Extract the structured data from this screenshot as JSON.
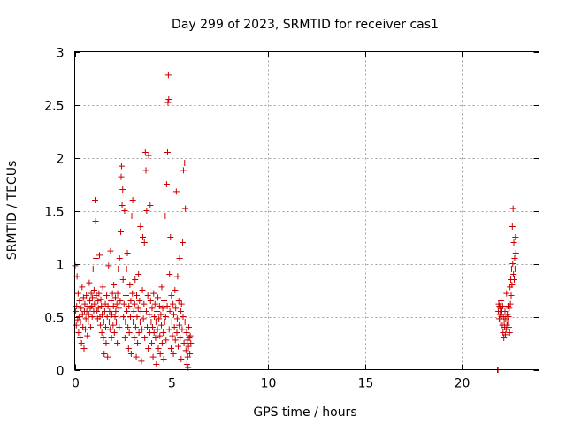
{
  "chart_data": {
    "type": "scatter",
    "title": "Day 299 of 2023, SRMTID for receiver cas1",
    "xlabel": "GPS time / hours",
    "ylabel": "SRMTID / TECUs",
    "xlim": [
      0,
      24
    ],
    "ylim": [
      0,
      3
    ],
    "x_ticks": [
      0,
      5,
      10,
      15,
      20
    ],
    "x_tick_labels": [
      "0",
      "5",
      "10",
      "15",
      "20"
    ],
    "y_ticks": [
      0,
      0.5,
      1,
      1.5,
      2,
      2.5,
      3
    ],
    "y_tick_labels": [
      "0",
      "0.5",
      "1",
      "1.5",
      "2",
      "2.5",
      "3"
    ],
    "grid": true,
    "marker": "+",
    "color": "#cc0000",
    "series": [
      {
        "name": "SRMTID",
        "points": [
          [
            0.02,
            0.98
          ],
          [
            0.05,
            0.55
          ],
          [
            0.08,
            0.42
          ],
          [
            0.1,
            0.6
          ],
          [
            0.12,
            0.88
          ],
          [
            0.15,
            0.47
          ],
          [
            0.18,
            0.72
          ],
          [
            0.2,
            0.35
          ],
          [
            0.22,
            0.5
          ],
          [
            0.25,
            0.65
          ],
          [
            0.28,
            0.3
          ],
          [
            0.3,
            0.45
          ],
          [
            0.33,
            0.58
          ],
          [
            0.35,
            0.25
          ],
          [
            0.38,
            0.78
          ],
          [
            0.4,
            0.52
          ],
          [
            0.42,
            0.4
          ],
          [
            0.45,
            0.68
          ],
          [
            0.48,
            0.2
          ],
          [
            0.5,
            0.55
          ],
          [
            0.52,
            0.62
          ],
          [
            0.55,
            0.38
          ],
          [
            0.58,
            0.48
          ],
          [
            0.6,
            0.7
          ],
          [
            0.62,
            0.55
          ],
          [
            0.65,
            0.32
          ],
          [
            0.68,
            0.6
          ],
          [
            0.7,
            0.45
          ],
          [
            0.72,
            0.52
          ],
          [
            0.75,
            0.82
          ],
          [
            0.78,
            0.65
          ],
          [
            0.8,
            0.58
          ],
          [
            0.82,
            0.4
          ],
          [
            0.85,
            0.72
          ],
          [
            0.88,
            0.6
          ],
          [
            0.9,
            0.5
          ],
          [
            0.92,
            0.68
          ],
          [
            0.95,
            0.95
          ],
          [
            0.98,
            0.55
          ],
          [
            1.0,
            0.75
          ],
          [
            1.02,
            0.62
          ],
          [
            1.05,
            1.6
          ],
          [
            1.08,
            1.4
          ],
          [
            1.1,
            1.05
          ],
          [
            1.12,
            0.7
          ],
          [
            1.15,
            0.55
          ],
          [
            1.18,
            0.48
          ],
          [
            1.2,
            0.65
          ],
          [
            1.22,
            0.58
          ],
          [
            1.25,
            0.72
          ],
          [
            1.28,
            1.08
          ],
          [
            1.3,
            0.5
          ],
          [
            1.33,
            0.42
          ],
          [
            1.35,
            0.66
          ],
          [
            1.38,
            0.6
          ],
          [
            1.4,
            0.35
          ],
          [
            1.42,
            0.52
          ],
          [
            1.45,
            0.78
          ],
          [
            1.48,
            0.3
          ],
          [
            1.5,
            0.45
          ],
          [
            1.52,
            0.15
          ],
          [
            1.55,
            0.55
          ],
          [
            1.58,
            0.62
          ],
          [
            1.6,
            0.4
          ],
          [
            1.62,
            0.25
          ],
          [
            1.65,
            0.7
          ],
          [
            1.68,
            0.5
          ],
          [
            1.7,
            0.12
          ],
          [
            1.72,
            0.6
          ],
          [
            1.75,
            0.98
          ],
          [
            1.78,
            0.45
          ],
          [
            1.8,
            0.55
          ],
          [
            1.82,
            0.38
          ],
          [
            1.85,
            1.12
          ],
          [
            1.88,
            0.65
          ],
          [
            1.9,
            0.3
          ],
          [
            1.92,
            0.52
          ],
          [
            1.95,
            0.72
          ],
          [
            1.98,
            0.42
          ],
          [
            2.0,
            0.6
          ],
          [
            2.02,
            0.8
          ],
          [
            2.05,
            0.35
          ],
          [
            2.08,
            0.5
          ],
          [
            2.1,
            0.68
          ],
          [
            2.12,
            0.55
          ],
          [
            2.15,
            0.45
          ],
          [
            2.18,
            0.62
          ],
          [
            2.2,
            0.25
          ],
          [
            2.22,
            0.72
          ],
          [
            2.25,
            0.95
          ],
          [
            2.28,
            0.58
          ],
          [
            2.3,
            0.4
          ],
          [
            2.32,
            1.05
          ],
          [
            2.35,
            0.65
          ],
          [
            2.38,
            1.3
          ],
          [
            2.4,
            1.82
          ],
          [
            2.42,
            1.92
          ],
          [
            2.45,
            1.55
          ],
          [
            2.48,
            1.7
          ],
          [
            2.5,
            0.85
          ],
          [
            2.52,
            0.5
          ],
          [
            2.55,
            0.62
          ],
          [
            2.58,
            1.5
          ],
          [
            2.6,
            0.3
          ],
          [
            2.62,
            0.45
          ],
          [
            2.65,
            0.7
          ],
          [
            2.68,
            0.95
          ],
          [
            2.7,
            0.55
          ],
          [
            2.72,
            1.1
          ],
          [
            2.75,
            0.4
          ],
          [
            2.78,
            0.2
          ],
          [
            2.8,
            0.6
          ],
          [
            2.82,
            0.35
          ],
          [
            2.85,
            0.8
          ],
          [
            2.88,
            0.5
          ],
          [
            2.9,
            0.65
          ],
          [
            2.92,
            0.15
          ],
          [
            2.95,
            1.45
          ],
          [
            2.98,
            0.72
          ],
          [
            3.0,
            1.6
          ],
          [
            3.02,
            0.45
          ],
          [
            3.05,
            0.55
          ],
          [
            3.08,
            0.3
          ],
          [
            3.1,
            0.62
          ],
          [
            3.12,
            0.85
          ],
          [
            3.15,
            0.4
          ],
          [
            3.18,
            0.12
          ],
          [
            3.2,
            0.7
          ],
          [
            3.22,
            0.5
          ],
          [
            3.25,
            0.25
          ],
          [
            3.28,
            0.58
          ],
          [
            3.3,
            0.9
          ],
          [
            3.32,
            0.35
          ],
          [
            3.35,
            0.65
          ],
          [
            3.38,
            0.45
          ],
          [
            3.4,
            1.35
          ],
          [
            3.42,
            0.55
          ],
          [
            3.45,
            0.08
          ],
          [
            3.48,
            0.38
          ],
          [
            3.5,
            0.75
          ],
          [
            3.52,
            1.25
          ],
          [
            3.55,
            0.48
          ],
          [
            3.58,
            0.62
          ],
          [
            3.6,
            1.2
          ],
          [
            3.62,
            0.3
          ],
          [
            3.65,
            2.05
          ],
          [
            3.68,
            1.88
          ],
          [
            3.7,
            0.55
          ],
          [
            3.72,
            1.5
          ],
          [
            3.75,
            0.4
          ],
          [
            3.78,
            0.7
          ],
          [
            3.8,
            0.2
          ],
          [
            3.82,
            2.02
          ],
          [
            3.85,
            0.52
          ],
          [
            3.88,
            0.35
          ],
          [
            3.9,
            1.55
          ],
          [
            3.92,
            0.65
          ],
          [
            3.95,
            0.45
          ],
          [
            3.98,
            0.25
          ],
          [
            4.0,
            0.58
          ],
          [
            4.02,
            0.4
          ],
          [
            4.05,
            0.12
          ],
          [
            4.08,
            0.72
          ],
          [
            4.1,
            0.35
          ],
          [
            4.12,
            0.5
          ],
          [
            4.15,
            0.62
          ],
          [
            4.18,
            0.3
          ],
          [
            4.2,
            0.45
          ],
          [
            4.22,
            0.05
          ],
          [
            4.25,
            0.55
          ],
          [
            4.28,
            0.38
          ],
          [
            4.3,
            0.68
          ],
          [
            4.32,
            0.2
          ],
          [
            4.35,
            0.48
          ],
          [
            4.38,
            0.6
          ],
          [
            4.4,
            0.32
          ],
          [
            4.42,
            0.15
          ],
          [
            4.45,
            0.52
          ],
          [
            4.48,
            0.42
          ],
          [
            4.5,
            0.78
          ],
          [
            4.52,
            0.25
          ],
          [
            4.55,
            0.58
          ],
          [
            4.58,
            0.35
          ],
          [
            4.6,
            0.1
          ],
          [
            4.62,
            0.65
          ],
          [
            4.65,
            0.45
          ],
          [
            4.68,
            1.45
          ],
          [
            4.7,
            0.5
          ],
          [
            4.72,
            0.28
          ],
          [
            4.75,
            1.75
          ],
          [
            4.78,
            0.6
          ],
          [
            4.8,
            2.05
          ],
          [
            4.82,
            2.52
          ],
          [
            4.84,
            2.78
          ],
          [
            4.86,
            2.55
          ],
          [
            4.88,
            0.38
          ],
          [
            4.9,
            0.9
          ],
          [
            4.92,
            0.55
          ],
          [
            4.95,
            1.25
          ],
          [
            4.98,
            0.2
          ],
          [
            5.0,
            0.7
          ],
          [
            5.02,
            0.45
          ],
          [
            5.05,
            0.32
          ],
          [
            5.08,
            0.62
          ],
          [
            5.1,
            0.15
          ],
          [
            5.12,
            0.52
          ],
          [
            5.15,
            0.4
          ],
          [
            5.18,
            0.75
          ],
          [
            5.2,
            0.28
          ],
          [
            5.22,
            0.58
          ],
          [
            5.25,
            1.68
          ],
          [
            5.28,
            0.35
          ],
          [
            5.3,
            0.48
          ],
          [
            5.32,
            0.88
          ],
          [
            5.35,
            0.22
          ],
          [
            5.38,
            0.65
          ],
          [
            5.4,
            0.42
          ],
          [
            5.42,
            1.05
          ],
          [
            5.45,
            0.3
          ],
          [
            5.48,
            0.55
          ],
          [
            5.5,
            0.1
          ],
          [
            5.52,
            0.62
          ],
          [
            5.55,
            0.38
          ],
          [
            5.58,
            1.2
          ],
          [
            5.6,
            0.5
          ],
          [
            5.62,
            1.88
          ],
          [
            5.65,
            0.25
          ],
          [
            5.68,
            1.95
          ],
          [
            5.7,
            0.45
          ],
          [
            5.72,
            1.52
          ],
          [
            5.75,
            0.18
          ],
          [
            5.78,
            0.35
          ],
          [
            5.8,
            0.05
          ],
          [
            5.82,
            0.28
          ],
          [
            5.84,
            0.12
          ],
          [
            5.86,
            0.02
          ],
          [
            5.88,
            0.22
          ],
          [
            5.9,
            0.4
          ],
          [
            5.92,
            0.3
          ],
          [
            5.95,
            0.15
          ],
          [
            5.97,
            0.32
          ],
          [
            6.0,
            0.25
          ],
          [
            21.85,
            0.0
          ],
          [
            21.88,
            0.0
          ],
          [
            21.9,
            0.55
          ],
          [
            21.92,
            0.62
          ],
          [
            21.94,
            0.48
          ],
          [
            21.96,
            0.6
          ],
          [
            21.98,
            0.52
          ],
          [
            22.0,
            0.58
          ],
          [
            22.02,
            0.45
          ],
          [
            22.04,
            0.65
          ],
          [
            22.06,
            0.5
          ],
          [
            22.08,
            0.55
          ],
          [
            22.1,
            0.42
          ],
          [
            22.12,
            0.6
          ],
          [
            22.14,
            0.35
          ],
          [
            22.16,
            0.5
          ],
          [
            22.18,
            0.3
          ],
          [
            22.2,
            0.45
          ],
          [
            22.22,
            0.4
          ],
          [
            22.24,
            0.55
          ],
          [
            22.26,
            0.33
          ],
          [
            22.28,
            0.48
          ],
          [
            22.3,
            0.38
          ],
          [
            22.32,
            0.72
          ],
          [
            22.34,
            0.42
          ],
          [
            22.36,
            0.52
          ],
          [
            22.38,
            0.45
          ],
          [
            22.4,
            0.6
          ],
          [
            22.42,
            0.5
          ],
          [
            22.44,
            0.4
          ],
          [
            22.46,
            0.58
          ],
          [
            22.48,
            0.35
          ],
          [
            22.5,
            0.78
          ],
          [
            22.52,
            0.62
          ],
          [
            22.54,
            0.85
          ],
          [
            22.56,
            0.7
          ],
          [
            22.58,
            0.95
          ],
          [
            22.6,
            0.8
          ],
          [
            22.62,
            1.35
          ],
          [
            22.64,
            1.0
          ],
          [
            22.66,
            1.52
          ],
          [
            22.68,
            0.9
          ],
          [
            22.7,
            1.2
          ],
          [
            22.72,
            0.85
          ],
          [
            22.74,
            1.05
          ],
          [
            22.76,
            0.95
          ],
          [
            22.78,
            1.25
          ],
          [
            22.8,
            1.1
          ]
        ]
      }
    ]
  }
}
